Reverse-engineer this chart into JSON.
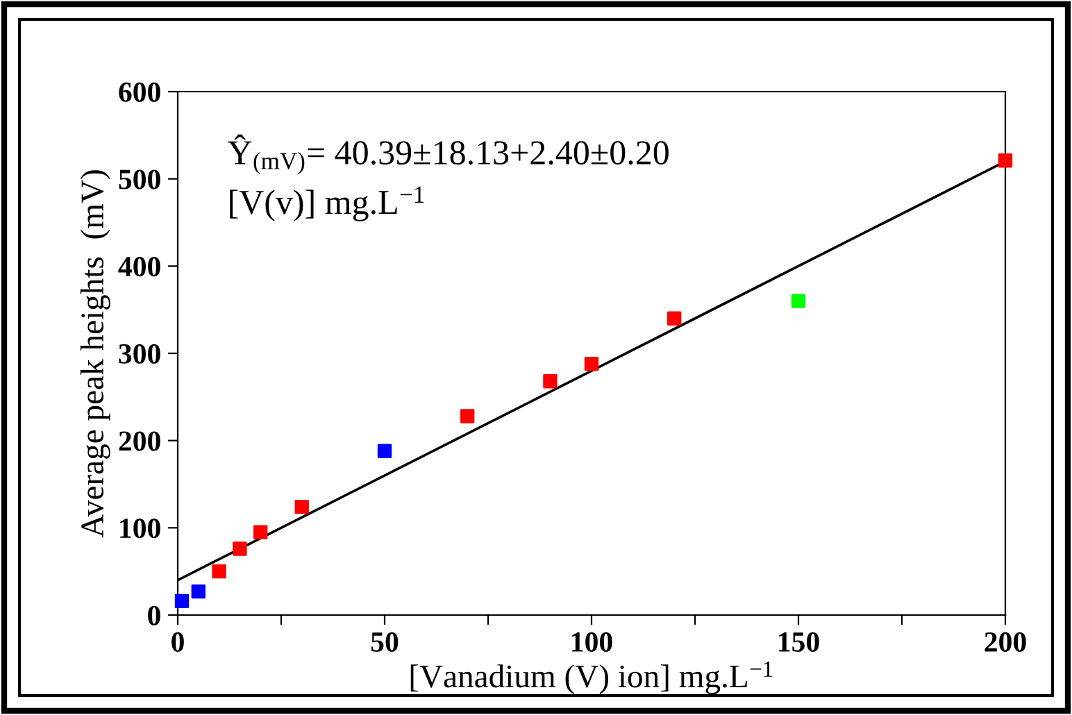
{
  "chart_data": {
    "type": "scatter",
    "xlabel": "[Vanadium (V) ion] mg.L$^{−1}$",
    "ylabel": "Average peak heights  (mV)",
    "annotations": [
      "Ŷ$_{(mV)}$= 40.39±18.13+2.40±0.20",
      "[V(v)] mg.L$^{−1}$"
    ],
    "series": [
      {
        "color": "#ff0000",
        "marker": "square",
        "x": [
          10,
          15,
          20,
          30,
          70,
          90,
          100,
          120,
          200
        ],
        "values": [
          50,
          76,
          95,
          124,
          228,
          268,
          288,
          340,
          521
        ]
      },
      {
        "color": "#0000ff",
        "marker": "square",
        "x": [
          1,
          5,
          50
        ],
        "values": [
          16,
          27,
          188
        ]
      },
      {
        "color": "#00ff00",
        "marker": "square",
        "x": [
          150
        ],
        "values": [
          360
        ]
      },
      {
        "type": "line",
        "color": "#000000",
        "marker": "none",
        "x": [
          0,
          200
        ],
        "values": [
          40,
          520
        ]
      }
    ],
    "xlim": [
      0,
      200
    ],
    "xticks": [
      0,
      {
        "value": 25,
        "label": null
      },
      50,
      {
        "value": 75,
        "label": null
      },
      100,
      {
        "value": 125,
        "label": null
      },
      150,
      {
        "value": 175,
        "label": null
      },
      200
    ],
    "ylim": [
      0,
      600
    ],
    "yticks": [
      0,
      100,
      200,
      300,
      400,
      500,
      600
    ],
    "grid": false
  }
}
